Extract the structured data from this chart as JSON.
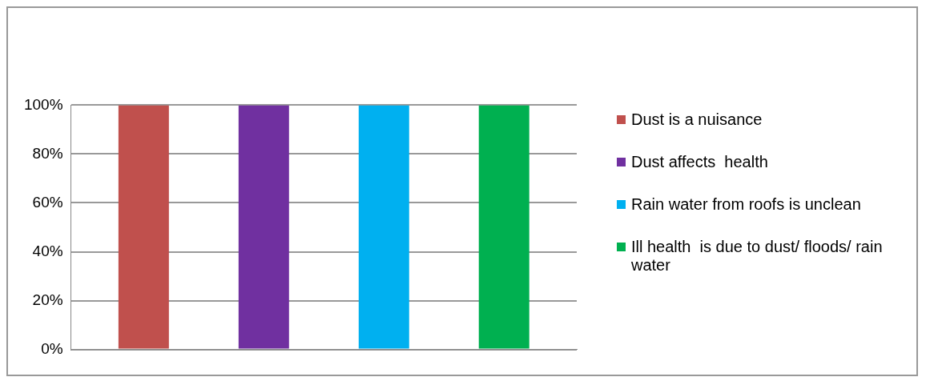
{
  "chart_data": {
    "type": "bar",
    "categories": [
      null
    ],
    "series": [
      {
        "name": "Dust is a nuisance",
        "color": "#c0504d",
        "values": [
          100
        ]
      },
      {
        "name": "Dust affects  health",
        "color": "#7030a0",
        "values": [
          100
        ]
      },
      {
        "name": "Rain water from roofs is unclean",
        "color": "#00b0f0",
        "values": [
          100
        ]
      },
      {
        "name": "Ill health  is due to dust/ floods/ rain water",
        "color": "#00b050",
        "values": [
          100
        ]
      }
    ],
    "ylim": [
      0,
      100
    ],
    "yticks": [
      {
        "value": 0,
        "label": "0%"
      },
      {
        "value": 20,
        "label": "20%"
      },
      {
        "value": 40,
        "label": "40%"
      },
      {
        "value": 60,
        "label": "60%"
      },
      {
        "value": 80,
        "label": "80%"
      },
      {
        "value": 100,
        "label": "100%"
      }
    ],
    "grid": "y",
    "legend": "right"
  }
}
